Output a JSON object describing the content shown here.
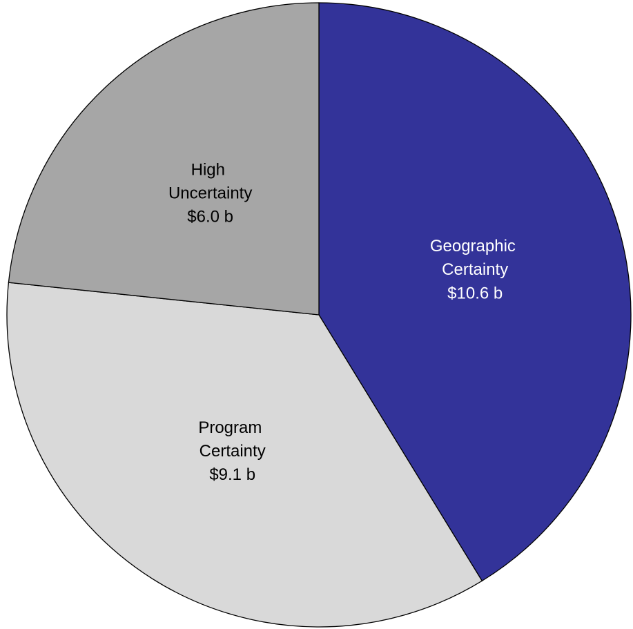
{
  "chart_data": {
    "type": "pie",
    "categories": [
      "Geographic Certainty",
      "Program Certainty",
      "High Uncertainty"
    ],
    "values": [
      10.6,
      9.1,
      6.0
    ],
    "value_labels": [
      "$10.6 b",
      "$9.1 b",
      "$6.0 b"
    ],
    "colors": [
      "#333399",
      "#d9d9d9",
      "#a6a6a6"
    ],
    "label_colors": [
      "#ffffff",
      "#000000",
      "#000000"
    ]
  }
}
